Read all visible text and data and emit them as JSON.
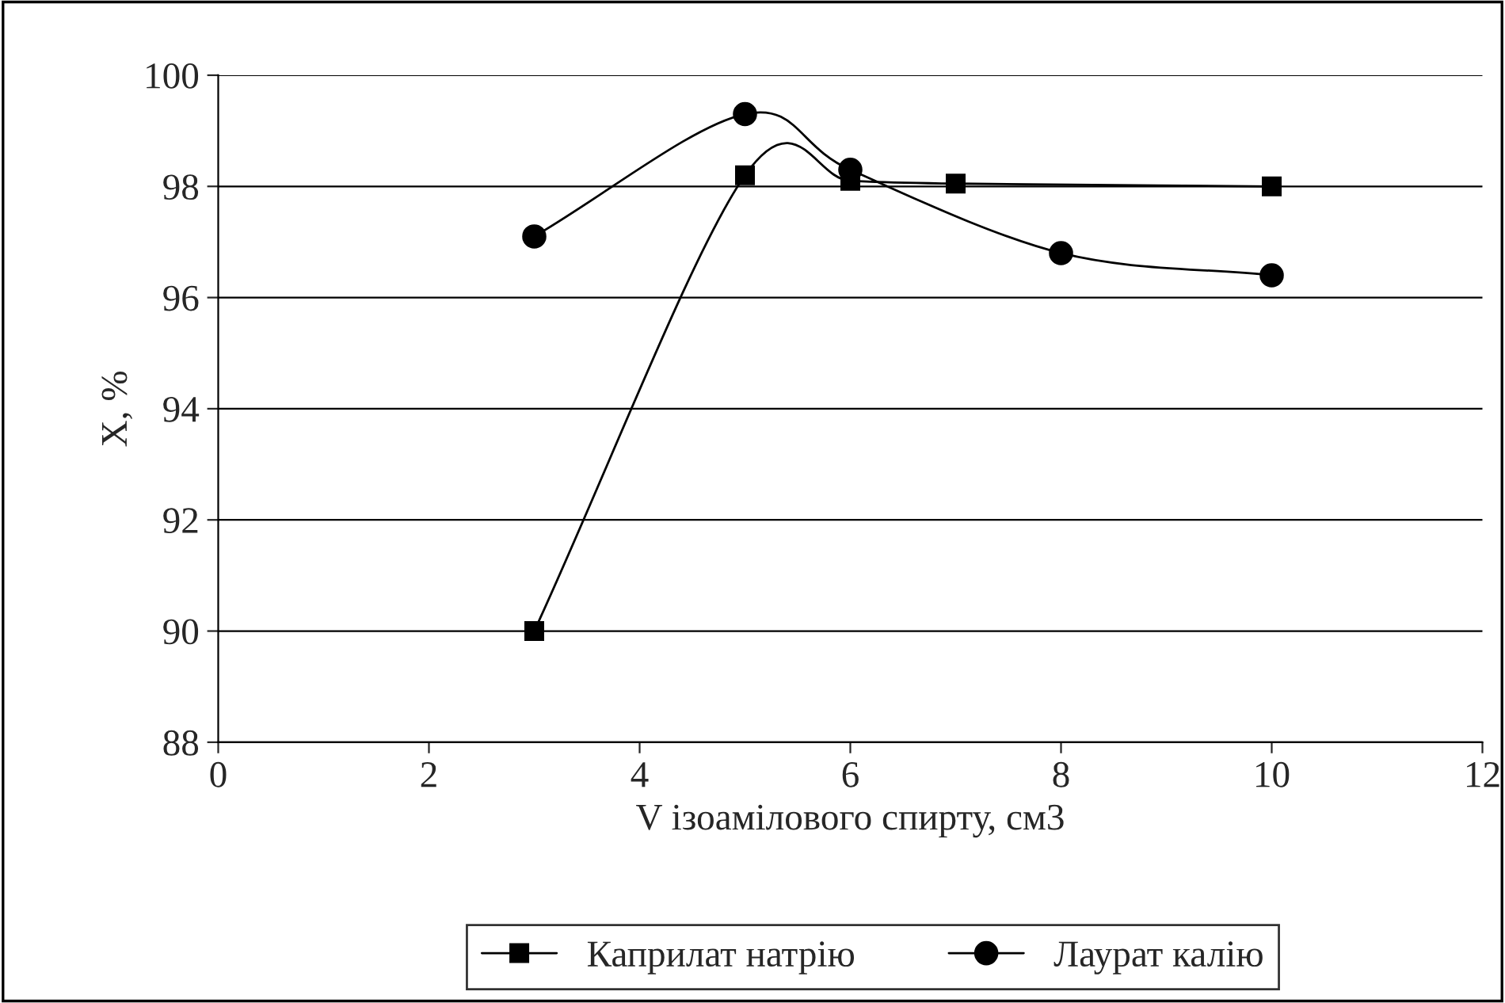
{
  "chart_data": {
    "type": "line",
    "xlabel": "V ізоамілового спирту, см3",
    "ylabel": "X, %",
    "xlim": [
      0,
      12
    ],
    "xticks": [
      0,
      2,
      4,
      6,
      8,
      10,
      12
    ],
    "ylim": [
      88,
      100
    ],
    "yticks": [
      88,
      90,
      92,
      94,
      96,
      98,
      100
    ],
    "grid": "y",
    "legend": "bottom",
    "series": [
      {
        "name": "Каприлат натрію",
        "color": "#000000",
        "marker": "square",
        "x": [
          3,
          5,
          6,
          7,
          10
        ],
        "values": [
          90.0,
          98.2,
          98.1,
          98.05,
          98.0
        ]
      },
      {
        "name": "Лаурат калію",
        "color": "#000000",
        "marker": "circle",
        "x": [
          3,
          5,
          6,
          8,
          10
        ],
        "values": [
          97.1,
          99.3,
          98.3,
          96.8,
          96.4
        ]
      }
    ]
  }
}
